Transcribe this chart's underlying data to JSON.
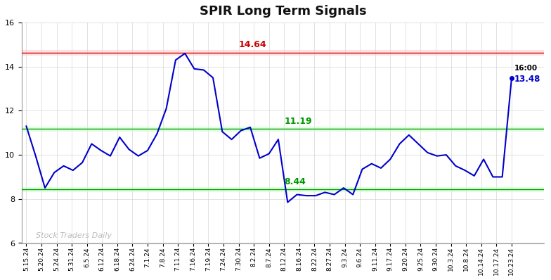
{
  "title": "SPIR Long Term Signals",
  "title_fontsize": 13,
  "background_color": "#ffffff",
  "line_color": "#0000cc",
  "line_width": 1.5,
  "ylim": [
    6,
    16
  ],
  "yticks": [
    6,
    8,
    10,
    12,
    14,
    16
  ],
  "red_line": 14.64,
  "green_line_upper": 11.19,
  "green_line_lower": 8.44,
  "red_line_color": "#cc0000",
  "red_fill_color": "#ffcccc",
  "green_line_color": "#009900",
  "green_fill_color": "#ccffcc",
  "red_fill_alpha": 0.5,
  "green_fill_alpha": 0.5,
  "watermark": "Stock Traders Daily",
  "watermark_color": "#bbbbbb",
  "last_label": "16:00",
  "last_value": 13.48,
  "last_label_color": "#000000",
  "last_value_color": "#0000cc",
  "annotation_color_red": "#cc0000",
  "annotation_color_green": "#009900",
  "x_labels": [
    "5.15.24",
    "5.20.24",
    "5.24.24",
    "5.31.24",
    "6.5.24",
    "6.12.24",
    "6.18.24",
    "6.24.24",
    "7.1.24",
    "7.8.24",
    "7.11.24",
    "7.16.24",
    "7.19.24",
    "7.24.24",
    "7.30.24",
    "8.2.24",
    "8.7.24",
    "8.12.24",
    "8.16.24",
    "8.22.24",
    "8.27.24",
    "9.3.24",
    "9.6.24",
    "9.11.24",
    "9.17.24",
    "9.20.24",
    "9.25.24",
    "9.30.24",
    "10.3.24",
    "10.8.24",
    "10.14.24",
    "10.17.24",
    "10.23.24"
  ],
  "y_values": [
    11.3,
    9.95,
    8.5,
    9.2,
    9.5,
    9.3,
    9.65,
    10.5,
    10.2,
    9.95,
    10.8,
    10.25,
    9.95,
    10.2,
    10.95,
    12.1,
    14.3,
    14.6,
    13.9,
    13.85,
    13.5,
    11.05,
    10.7,
    11.1,
    11.25,
    9.85,
    10.05,
    10.7,
    7.85,
    8.2,
    8.15,
    8.15,
    8.3,
    8.2,
    8.5,
    8.2,
    9.35,
    9.6,
    9.4,
    9.8,
    10.5,
    10.9,
    10.5,
    10.1,
    9.95,
    10.0,
    9.5,
    9.3,
    9.05,
    9.8,
    9.0,
    9.0,
    13.48
  ],
  "grid_color": "#cccccc",
  "grid_alpha": 0.8,
  "spine_color": "#999999"
}
